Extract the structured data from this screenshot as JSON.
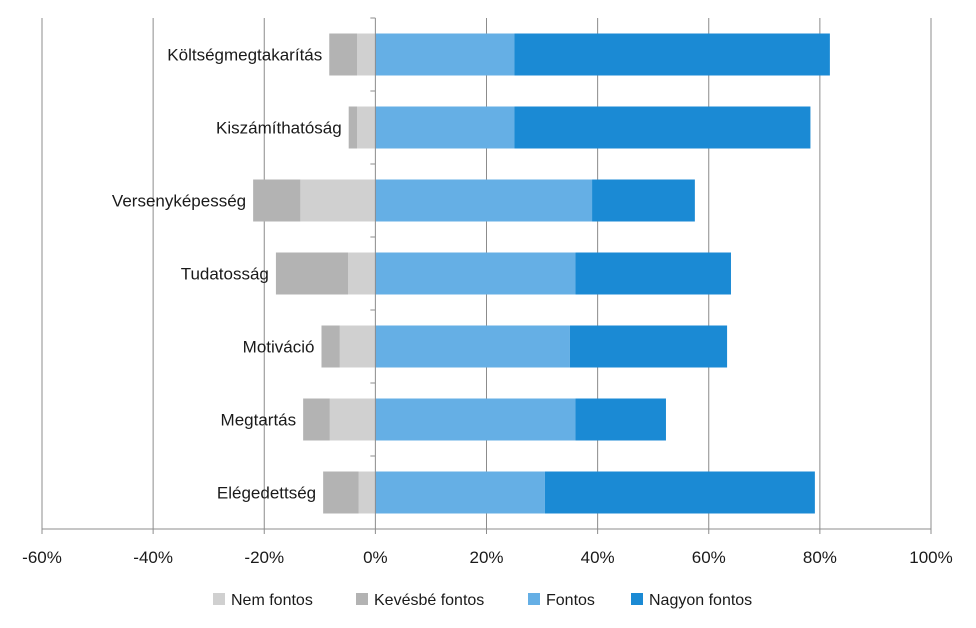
{
  "chart_data": {
    "type": "bar",
    "orientation": "horizontal",
    "stacked": "diverging",
    "categories": [
      "Költségmegtakarítás",
      "Kiszámíthatóság",
      "Versenyképesség",
      "Tudatosság",
      "Motiváció",
      "Megtartás",
      "Elégedettség"
    ],
    "series": [
      {
        "name": "Nem fontos",
        "side": "negative",
        "color": "#d0d0d0",
        "values": [
          3.3,
          3.3,
          13.5,
          4.9,
          6.4,
          8.2,
          3.0
        ]
      },
      {
        "name": "Kevésbé fontos",
        "side": "negative",
        "color": "#b3b3b3",
        "values": [
          5.0,
          1.5,
          8.5,
          13.0,
          3.3,
          4.8,
          6.4
        ]
      },
      {
        "name": "Fontos",
        "side": "positive",
        "color": "#65afe5",
        "values": [
          25.0,
          25.0,
          39.0,
          36.0,
          35.0,
          36.0,
          30.5
        ]
      },
      {
        "name": "Nagyon fontos",
        "side": "positive",
        "color": "#1b8ad4",
        "values": [
          56.8,
          53.3,
          18.5,
          28.0,
          28.3,
          16.3,
          48.6
        ]
      }
    ],
    "xlim": [
      -60,
      100
    ],
    "xticks": [
      "-60%",
      "-40%",
      "-20%",
      "0%",
      "20%",
      "40%",
      "60%",
      "80%",
      "100%"
    ],
    "tick_values": [
      -60,
      -40,
      -20,
      0,
      20,
      40,
      60,
      80,
      100
    ],
    "grid": true,
    "legend": "bottom",
    "title": "",
    "xlabel": "",
    "ylabel": ""
  }
}
